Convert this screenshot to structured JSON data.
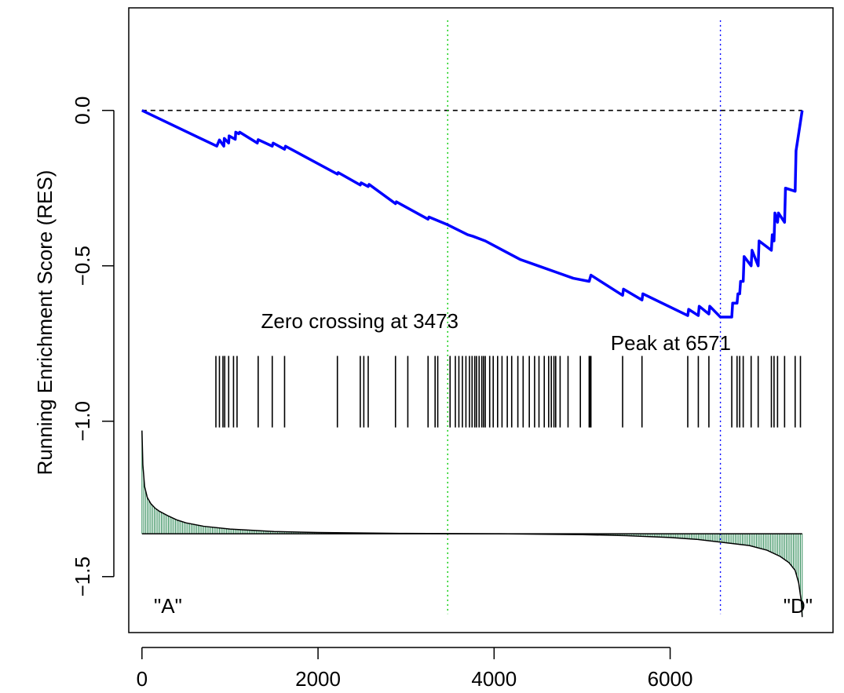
{
  "chart_data": {
    "type": "line",
    "title": "",
    "xlabel": "",
    "ylabel": "Running Enrichment Score (RES)",
    "xlim": [
      -150,
      7850
    ],
    "ylim": [
      -1.68,
      0.33
    ],
    "x_ticks": [
      0,
      2000,
      4000,
      6000
    ],
    "x_tick_labels": [
      "0",
      "2000",
      "4000",
      "6000"
    ],
    "y_ticks": [
      0.0,
      -0.5,
      -1.0,
      -1.5
    ],
    "y_tick_labels": [
      "0.0",
      "−0.5",
      "−1.0",
      "−1.5"
    ],
    "grid": false,
    "legend": "none",
    "n_genes": 7500,
    "colors": {
      "running_score": "#0000ff",
      "zero_line": "#000000",
      "zero_crossing_line": "#00cc00",
      "peak_line": "#0000ff",
      "ranked_metric_fill": "#2e8b57",
      "hit_bars": "#000000"
    },
    "series": [
      {
        "name": "Running Enrichment Score",
        "x": [
          0,
          850,
          880,
          930,
          935,
          985,
          990,
          1060,
          1065,
          1100,
          1110,
          1310,
          1320,
          1480,
          1490,
          1620,
          1630,
          2220,
          2230,
          2480,
          2490,
          2570,
          2580,
          2880,
          2890,
          3250,
          3260,
          3473,
          3700,
          3760,
          3900,
          4100,
          4300,
          4500,
          4700,
          4900,
          5080,
          5100,
          5460,
          5470,
          5680,
          5690,
          6200,
          6210,
          6320,
          6330,
          6440,
          6450,
          6571,
          6700,
          6710,
          6760,
          6770,
          6790,
          6800,
          6830,
          6840,
          6920,
          6930,
          7000,
          7010,
          7150,
          7160,
          7180,
          7190,
          7220,
          7230,
          7300,
          7310,
          7420,
          7430,
          7500
        ],
        "y": [
          0.0,
          -0.115,
          -0.095,
          -0.115,
          -0.09,
          -0.105,
          -0.082,
          -0.093,
          -0.07,
          -0.075,
          -0.07,
          -0.105,
          -0.094,
          -0.115,
          -0.105,
          -0.125,
          -0.115,
          -0.205,
          -0.2,
          -0.24,
          -0.233,
          -0.245,
          -0.238,
          -0.3,
          -0.294,
          -0.35,
          -0.343,
          -0.368,
          -0.4,
          -0.405,
          -0.42,
          -0.45,
          -0.48,
          -0.5,
          -0.52,
          -0.54,
          -0.55,
          -0.53,
          -0.595,
          -0.575,
          -0.61,
          -0.59,
          -0.66,
          -0.64,
          -0.66,
          -0.63,
          -0.655,
          -0.63,
          -0.665,
          -0.665,
          -0.62,
          -0.62,
          -0.59,
          -0.59,
          -0.55,
          -0.55,
          -0.47,
          -0.5,
          -0.45,
          -0.5,
          -0.42,
          -0.45,
          -0.4,
          -0.42,
          -0.33,
          -0.36,
          -0.33,
          -0.36,
          -0.25,
          -0.26,
          -0.13,
          0.0
        ]
      },
      {
        "name": "Ranked metric",
        "x": [
          0,
          10,
          30,
          60,
          100,
          150,
          200,
          300,
          400,
          500,
          700,
          1000,
          1500,
          2000,
          3000,
          4000,
          5000,
          5500,
          6000,
          6300,
          6600,
          6900,
          7100,
          7250,
          7350,
          7420,
          7460,
          7490,
          7500
        ],
        "y": [
          -1.03,
          -1.14,
          -1.21,
          -1.245,
          -1.265,
          -1.28,
          -1.29,
          -1.305,
          -1.318,
          -1.327,
          -1.338,
          -1.347,
          -1.355,
          -1.358,
          -1.361,
          -1.362,
          -1.365,
          -1.368,
          -1.374,
          -1.38,
          -1.39,
          -1.4,
          -1.415,
          -1.435,
          -1.455,
          -1.48,
          -1.52,
          -1.58,
          -1.63
        ]
      }
    ],
    "baseline": -1.362,
    "hits": [
      840,
      880,
      920,
      940,
      985,
      1040,
      1080,
      1320,
      1480,
      1620,
      2220,
      2480,
      2520,
      2570,
      2880,
      3020,
      3250,
      3330,
      3360,
      3500,
      3560,
      3600,
      3640,
      3680,
      3720,
      3750,
      3780,
      3800,
      3830,
      3860,
      3880,
      3900,
      3950,
      3990,
      4040,
      4090,
      4150,
      4200,
      4270,
      4330,
      4400,
      4460,
      4510,
      4570,
      4620,
      4650,
      4680,
      4700,
      4750,
      4840,
      4980,
      5080,
      5090,
      5100,
      5460,
      5680,
      6200,
      6320,
      6440,
      6700,
      6760,
      6790,
      6830,
      6920,
      7000,
      7150,
      7180,
      7220,
      7300,
      7420,
      7480
    ],
    "zero_crossing": 3473,
    "peak": 6571,
    "annotations": {
      "zero_crossing": "Zero crossing at 3473",
      "peak": "Peak at 6571",
      "left_label": "\"A\"",
      "right_label": "\"D\""
    }
  }
}
